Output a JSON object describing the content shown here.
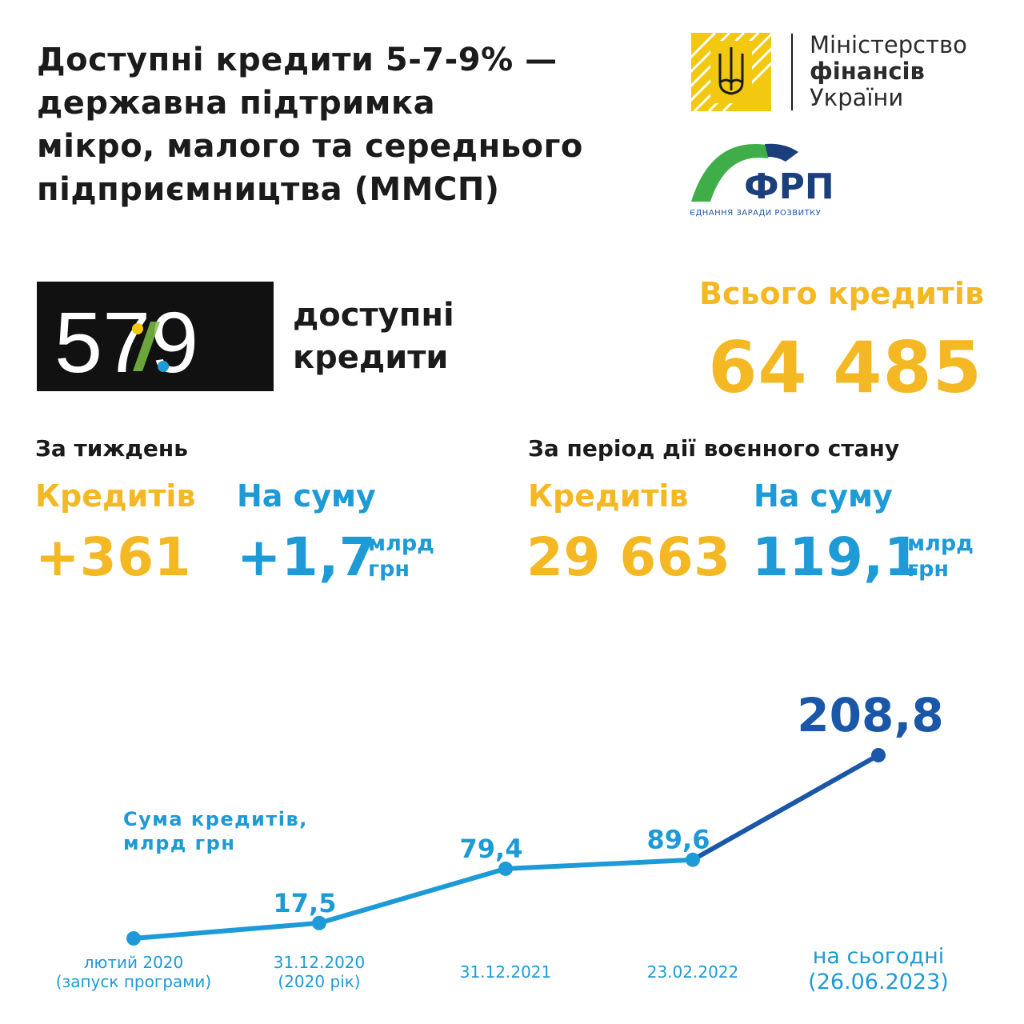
{
  "title_lines": [
    "Доступні кредити 5-7-9% —",
    "державна підтримка",
    "мікро, малого та середнього",
    "підприємництва (ММСП)"
  ],
  "ministry_logo": {
    "lines": [
      "Міністерство",
      "фінансів",
      "України"
    ],
    "color": "#f2c811"
  },
  "frp_logo": {
    "name": "ФРП",
    "tagline": "ЄДНАННЯ ЗАРАДИ РОЗВИТКУ"
  },
  "badge": {
    "number": "579",
    "caption_lines": [
      "доступні",
      "кредити"
    ]
  },
  "total": {
    "label": "Всього кредитів",
    "value": "64 485"
  },
  "week": {
    "heading": "За тиждень",
    "credits_label": "Кредитів",
    "credits_value": "+361",
    "sum_label": "На суму",
    "sum_value": "+1,7",
    "unit_lines": [
      "млрд",
      "грн"
    ]
  },
  "war": {
    "heading": "За період дії воєнного стану",
    "credits_label": "Кредитів",
    "credits_value": "29 663",
    "sum_label": "На суму",
    "sum_value": "119,1",
    "unit_lines": [
      "млрд",
      "грн"
    ]
  },
  "chart_data": {
    "type": "line",
    "series_label_lines": [
      "Сума кредитів,",
      "млрд грн"
    ],
    "categories": [
      [
        "лютий 2020",
        "(запуск програми)"
      ],
      [
        "31.12.2020",
        "(2020 рік)"
      ],
      [
        "31.12.2021"
      ],
      [
        "23.02.2022"
      ],
      [
        "на сьогодні",
        "(26.06.2023)"
      ]
    ],
    "values": [
      0,
      17.5,
      79.4,
      89.6,
      208.8
    ],
    "value_labels": [
      "",
      "17,5",
      "79,4",
      "89,6",
      "208,8"
    ],
    "ylim": [
      0,
      208.8
    ],
    "grid": false,
    "colors": {
      "line": "#1e9ad6",
      "last_segment": "#1a57a8"
    }
  },
  "colors": {
    "yellow": "#f4b824",
    "blue": "#1e9ad6",
    "dark_blue": "#1a57a8",
    "black": "#111111"
  }
}
